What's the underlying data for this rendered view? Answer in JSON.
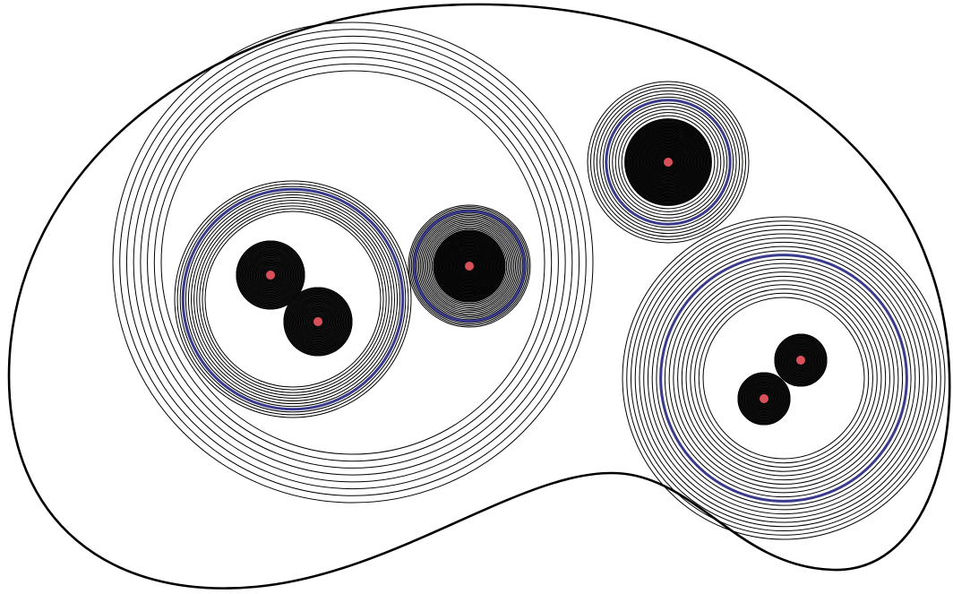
{
  "colors": {
    "background": "#ffffff",
    "stroke": "#000000",
    "highlight_ring": "#3a3a8c",
    "core_point": "#d9505a"
  },
  "diagram": {
    "outer_boundary": "closed-kidney-shaped-outline",
    "nested_circle_groups": [
      {
        "name": "large-left-group",
        "ring_count": 8,
        "contains": [
          "left-sub-group",
          "middle-small-group"
        ]
      },
      {
        "name": "left-sub-group",
        "ring_count": 12,
        "highlight_ring_index": 3,
        "contains": [
          "left-point-a",
          "left-point-b"
        ]
      },
      {
        "name": "middle-small-group",
        "ring_count": 18,
        "highlight_ring_index": 4,
        "point": "middle-point"
      },
      {
        "name": "top-right-group",
        "ring_count": 16,
        "highlight_ring_index": 6,
        "point": "top-right-point"
      },
      {
        "name": "bottom-right-group",
        "ring_count": 20,
        "highlight_ring_index": 9,
        "contains": [
          "right-point-a",
          "right-point-b"
        ]
      }
    ],
    "dense_point_clusters": [
      {
        "name": "left-point-a",
        "ring_count": 25
      },
      {
        "name": "left-point-b",
        "ring_count": 25
      },
      {
        "name": "middle-point",
        "ring_count": 30
      },
      {
        "name": "top-right-point",
        "ring_count": 35
      },
      {
        "name": "right-point-a",
        "ring_count": 20
      },
      {
        "name": "right-point-b",
        "ring_count": 20
      }
    ]
  }
}
